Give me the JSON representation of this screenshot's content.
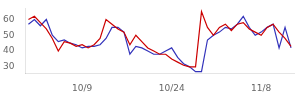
{
  "chart_data": {
    "type": "line",
    "categories": [
      null,
      null,
      null,
      null,
      null,
      null,
      null,
      null,
      null,
      "10/9",
      null,
      null,
      null,
      null,
      null,
      null,
      null,
      null,
      null,
      null,
      null,
      null,
      null,
      null,
      "10/24",
      null,
      null,
      null,
      null,
      null,
      null,
      null,
      null,
      null,
      null,
      null,
      null,
      null,
      null,
      "11/8",
      null,
      null,
      null,
      null,
      null
    ],
    "series": [
      {
        "color": "#cc0000",
        "values": [
          60,
          62,
          58,
          54,
          48,
          40,
          46,
          45,
          43,
          44,
          42,
          44,
          48,
          60,
          57,
          54,
          52,
          44,
          50,
          46,
          42,
          40,
          38,
          38,
          35,
          33,
          31,
          30,
          30,
          65,
          55,
          50,
          55,
          57,
          53,
          57,
          58,
          54,
          52,
          50,
          55,
          57,
          52,
          48,
          43
        ]
      },
      {
        "color": "#3333bb",
        "values": [
          57,
          60,
          56,
          60,
          50,
          46,
          47,
          45,
          44,
          42,
          43,
          43,
          44,
          48,
          55,
          55,
          52,
          38,
          43,
          42,
          40,
          38,
          38,
          40,
          42,
          36,
          32,
          30,
          27,
          27,
          47,
          50,
          52,
          55,
          54,
          57,
          62,
          55,
          50,
          52,
          55,
          57,
          42,
          55,
          42
        ]
      }
    ],
    "ylim": [
      26,
      67
    ],
    "yticks": [
      30,
      40,
      50,
      60
    ],
    "grid": false
  }
}
